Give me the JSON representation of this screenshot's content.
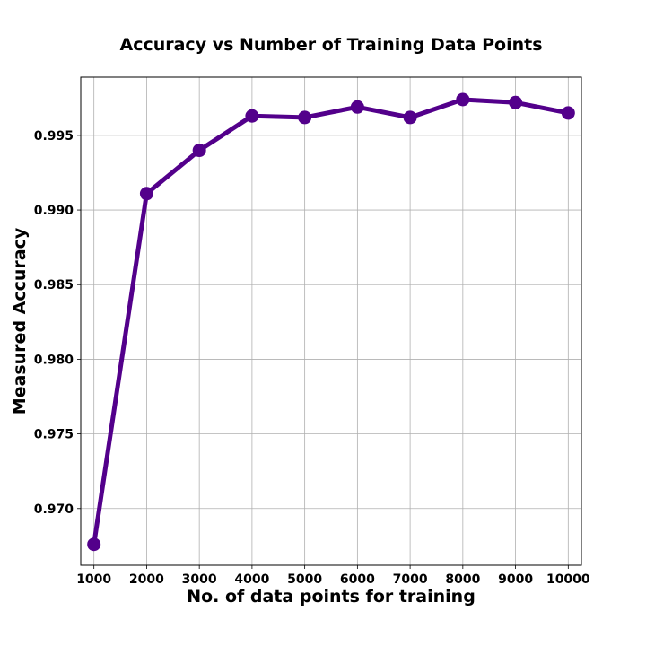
{
  "chart_data": {
    "type": "line",
    "title": "Accuracy vs Number of Training Data Points",
    "xlabel": "No. of data points for training",
    "ylabel": "Measured Accuracy",
    "x": [
      1000,
      2000,
      3000,
      4000,
      5000,
      6000,
      7000,
      8000,
      9000,
      10000
    ],
    "xticks": [
      "1000",
      "2000",
      "3000",
      "4000",
      "5000",
      "6000",
      "7000",
      "8000",
      "9000",
      "10000"
    ],
    "yticks": [
      "0.970",
      "0.975",
      "0.980",
      "0.985",
      "0.990",
      "0.995"
    ],
    "xlim": [
      750,
      10250
    ],
    "ylim": [
      0.9662,
      0.9989
    ],
    "grid": true,
    "series": [
      {
        "values": [
          0.9676,
          0.9911,
          0.994,
          0.9963,
          0.9962,
          0.9969,
          0.9962,
          0.9974,
          0.9972,
          0.9965
        ],
        "color": "#53008b",
        "marker": "circle"
      }
    ]
  }
}
